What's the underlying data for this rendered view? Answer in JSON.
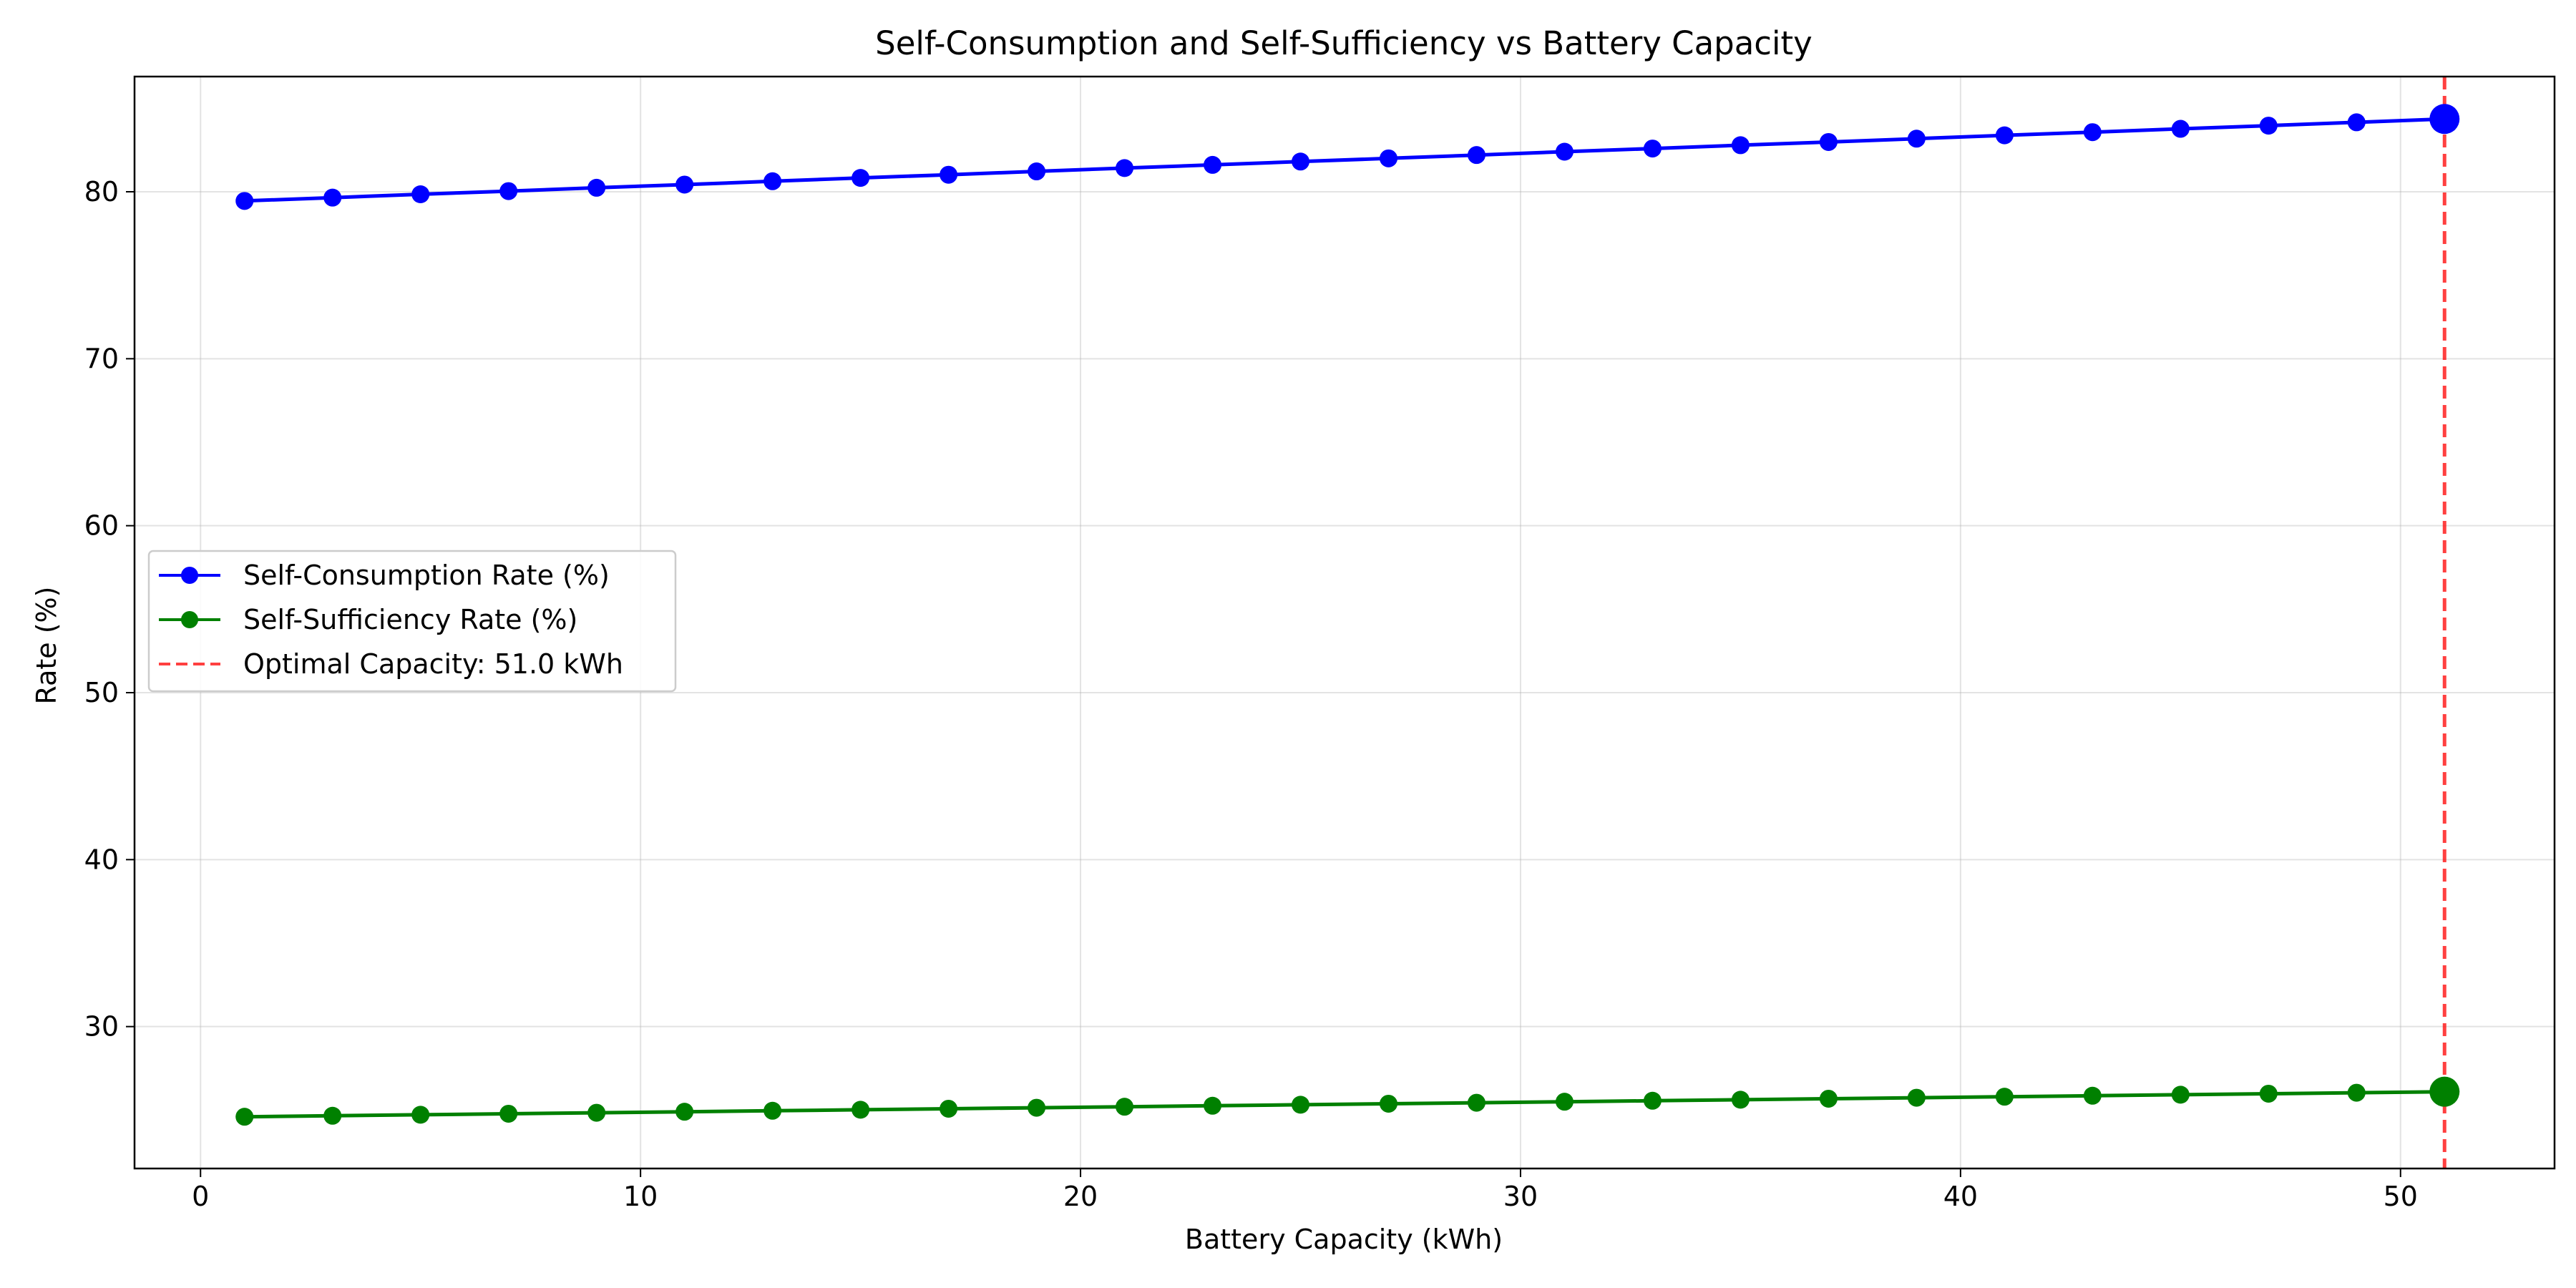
{
  "chart_data": {
    "type": "line",
    "title": "Self-Consumption and Self-Sufficiency vs Battery Capacity",
    "xlabel": "Battery Capacity (kWh)",
    "ylabel": "Rate (%)",
    "xlim": [
      -1.5,
      53.5
    ],
    "ylim": [
      21.5,
      86.9
    ],
    "xticks": [
      0,
      10,
      20,
      30,
      40,
      50
    ],
    "yticks": [
      30,
      40,
      50,
      60,
      70,
      80
    ],
    "grid": true,
    "legend_position": "center-left",
    "x": [
      1,
      3,
      5,
      7,
      9,
      11,
      13,
      15,
      17,
      19,
      21,
      23,
      25,
      27,
      29,
      31,
      33,
      35,
      37,
      39,
      41,
      43,
      45,
      47,
      49,
      51
    ],
    "series": [
      {
        "name": "Self-Consumption Rate (%)",
        "color": "#0000ff",
        "marker": "circle",
        "values": [
          79.45,
          79.65,
          79.85,
          80.04,
          80.24,
          80.43,
          80.63,
          80.83,
          81.02,
          81.22,
          81.42,
          81.61,
          81.81,
          82.0,
          82.2,
          82.4,
          82.59,
          82.79,
          82.98,
          83.18,
          83.38,
          83.57,
          83.77,
          83.96,
          84.16,
          84.36
        ]
      },
      {
        "name": "Self-Sufficiency Rate (%)",
        "color": "#008000",
        "marker": "circle",
        "values": [
          24.6,
          24.66,
          24.72,
          24.78,
          24.84,
          24.9,
          24.96,
          25.02,
          25.08,
          25.14,
          25.2,
          25.26,
          25.32,
          25.38,
          25.44,
          25.5,
          25.56,
          25.62,
          25.68,
          25.74,
          25.8,
          25.86,
          25.92,
          25.98,
          26.04,
          26.1
        ]
      }
    ],
    "annotations": [
      {
        "type": "vline",
        "x": 51.0,
        "label": "Optimal Capacity: 51.0 kWh",
        "color": "#ff0000",
        "style": "dashed"
      }
    ],
    "highlighted_points": [
      {
        "series": 0,
        "x": 51,
        "y": 84.36
      },
      {
        "series": 1,
        "x": 51,
        "y": 26.1
      }
    ]
  }
}
